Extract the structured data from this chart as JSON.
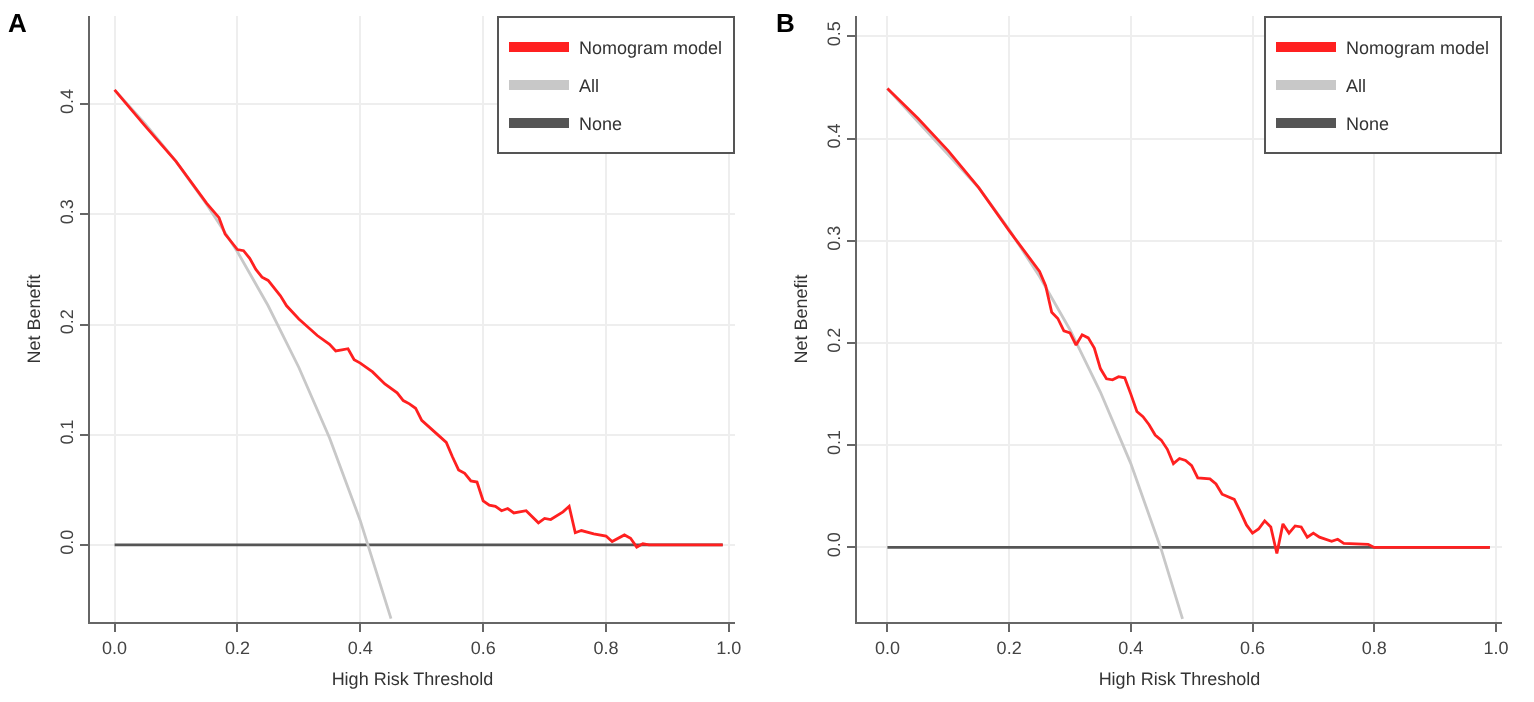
{
  "chart_data": [
    {
      "type": "line",
      "title": "A",
      "xlabel": "High Risk Threshold",
      "ylabel": "Net Benefit",
      "xlim": [
        -0.04,
        1.01
      ],
      "ylim": [
        -0.07,
        0.48
      ],
      "xticks": [
        {
          "value": 0,
          "label": "0.0"
        },
        {
          "value": 0.2,
          "label": "0.2"
        },
        {
          "value": 0.4,
          "label": "0.4"
        },
        {
          "value": 0.6,
          "label": "0.6"
        },
        {
          "value": 0.8,
          "label": "0.8"
        },
        {
          "value": 1,
          "label": "1.0"
        }
      ],
      "yticks": [
        {
          "value": 0,
          "label": "0.0"
        },
        {
          "value": 0.1,
          "label": "0.1"
        },
        {
          "value": 0.2,
          "label": "0.2"
        },
        {
          "value": 0.3,
          "label": "0.3"
        },
        {
          "value": 0.4,
          "label": "0.4"
        }
      ],
      "grid": true,
      "legend": "top right",
      "series": [
        {
          "name": "Nomogram model",
          "color": "#ff2020",
          "x": [
            0,
            0.05,
            0.1,
            0.15,
            0.17,
            0.18,
            0.2,
            0.21,
            0.22,
            0.23,
            0.24,
            0.25,
            0.27,
            0.28,
            0.3,
            0.31,
            0.33,
            0.35,
            0.36,
            0.37,
            0.38,
            0.39,
            0.4,
            0.42,
            0.44,
            0.46,
            0.47,
            0.48,
            0.49,
            0.5,
            0.52,
            0.53,
            0.54,
            0.55,
            0.56,
            0.57,
            0.58,
            0.59,
            0.6,
            0.61,
            0.62,
            0.63,
            0.64,
            0.65,
            0.67,
            0.69,
            0.7,
            0.71,
            0.73,
            0.74,
            0.75,
            0.76,
            0.78,
            0.8,
            0.81,
            0.83,
            0.84,
            0.85,
            0.86,
            0.87,
            0.99
          ],
          "values": [
            0.413,
            0.38,
            0.348,
            0.31,
            0.297,
            0.282,
            0.268,
            0.267,
            0.26,
            0.25,
            0.243,
            0.24,
            0.226,
            0.217,
            0.205,
            0.2,
            0.19,
            0.182,
            0.176,
            0.177,
            0.178,
            0.168,
            0.165,
            0.157,
            0.146,
            0.138,
            0.131,
            0.128,
            0.124,
            0.113,
            0.103,
            0.098,
            0.093,
            0.08,
            0.068,
            0.065,
            0.058,
            0.057,
            0.04,
            0.036,
            0.035,
            0.031,
            0.033,
            0.029,
            0.031,
            0.02,
            0.024,
            0.023,
            0.03,
            0.035,
            0.011,
            0.013,
            0.01,
            0.008,
            0.003,
            0.009,
            0.006,
            -0.002,
            0.001,
            0,
            0
          ]
        },
        {
          "name": "All",
          "color": "#c8c8c8",
          "x": [
            0,
            0.05,
            0.1,
            0.15,
            0.2,
            0.25,
            0.3,
            0.35,
            0.4,
            0.45
          ],
          "values": [
            0.413,
            0.382,
            0.348,
            0.309,
            0.266,
            0.217,
            0.161,
            0.097,
            0.022,
            -0.067
          ]
        },
        {
          "name": "None",
          "color": "#555555",
          "x": [
            0,
            0.99
          ],
          "values": [
            0,
            0
          ]
        }
      ]
    },
    {
      "type": "line",
      "title": "B",
      "xlabel": "High Risk Threshold",
      "ylabel": "Net Benefit",
      "xlim": [
        -0.05,
        1.01
      ],
      "ylim": [
        -0.073,
        0.52
      ],
      "xticks": [
        {
          "value": 0,
          "label": "0.0"
        },
        {
          "value": 0.2,
          "label": "0.2"
        },
        {
          "value": 0.4,
          "label": "0.4"
        },
        {
          "value": 0.6,
          "label": "0.6"
        },
        {
          "value": 0.8,
          "label": "0.8"
        },
        {
          "value": 1,
          "label": "1.0"
        }
      ],
      "yticks": [
        {
          "value": 0,
          "label": "0.0"
        },
        {
          "value": 0.1,
          "label": "0.1"
        },
        {
          "value": 0.2,
          "label": "0.2"
        },
        {
          "value": 0.3,
          "label": "0.3"
        },
        {
          "value": 0.4,
          "label": "0.4"
        },
        {
          "value": 0.5,
          "label": "0.5"
        }
      ],
      "grid": true,
      "legend": "top right",
      "series": [
        {
          "name": "Nomogram model",
          "color": "#ff2020",
          "x": [
            0,
            0.05,
            0.1,
            0.15,
            0.2,
            0.25,
            0.26,
            0.27,
            0.28,
            0.29,
            0.3,
            0.31,
            0.32,
            0.33,
            0.34,
            0.35,
            0.36,
            0.37,
            0.38,
            0.39,
            0.4,
            0.41,
            0.42,
            0.43,
            0.44,
            0.45,
            0.46,
            0.47,
            0.48,
            0.49,
            0.5,
            0.51,
            0.53,
            0.54,
            0.55,
            0.57,
            0.58,
            0.59,
            0.6,
            0.61,
            0.62,
            0.63,
            0.64,
            0.65,
            0.66,
            0.67,
            0.68,
            0.69,
            0.7,
            0.71,
            0.73,
            0.74,
            0.75,
            0.79,
            0.8,
            0.99
          ],
          "values": [
            0.449,
            0.42,
            0.388,
            0.352,
            0.31,
            0.27,
            0.256,
            0.23,
            0.224,
            0.212,
            0.21,
            0.198,
            0.208,
            0.205,
            0.195,
            0.175,
            0.165,
            0.164,
            0.167,
            0.166,
            0.15,
            0.133,
            0.128,
            0.12,
            0.11,
            0.105,
            0.096,
            0.082,
            0.087,
            0.085,
            0.08,
            0.068,
            0.067,
            0.062,
            0.052,
            0.047,
            0.035,
            0.022,
            0.014,
            0.018,
            0.026,
            0.02,
            -0.006,
            0.023,
            0.014,
            0.021,
            0.02,
            0.01,
            0.014,
            0.01,
            0.006,
            0.008,
            0.004,
            0.003,
            0,
            0
          ]
        },
        {
          "name": "All",
          "color": "#c8c8c8",
          "x": [
            0,
            0.15,
            0.2,
            0.25,
            0.3,
            0.35,
            0.4,
            0.45,
            0.485
          ],
          "values": [
            0.449,
            0.352,
            0.311,
            0.265,
            0.213,
            0.152,
            0.082,
            -0.002,
            -0.07
          ]
        },
        {
          "name": "None",
          "color": "#555555",
          "x": [
            0,
            0.99
          ],
          "values": [
            0,
            0
          ]
        }
      ]
    }
  ]
}
